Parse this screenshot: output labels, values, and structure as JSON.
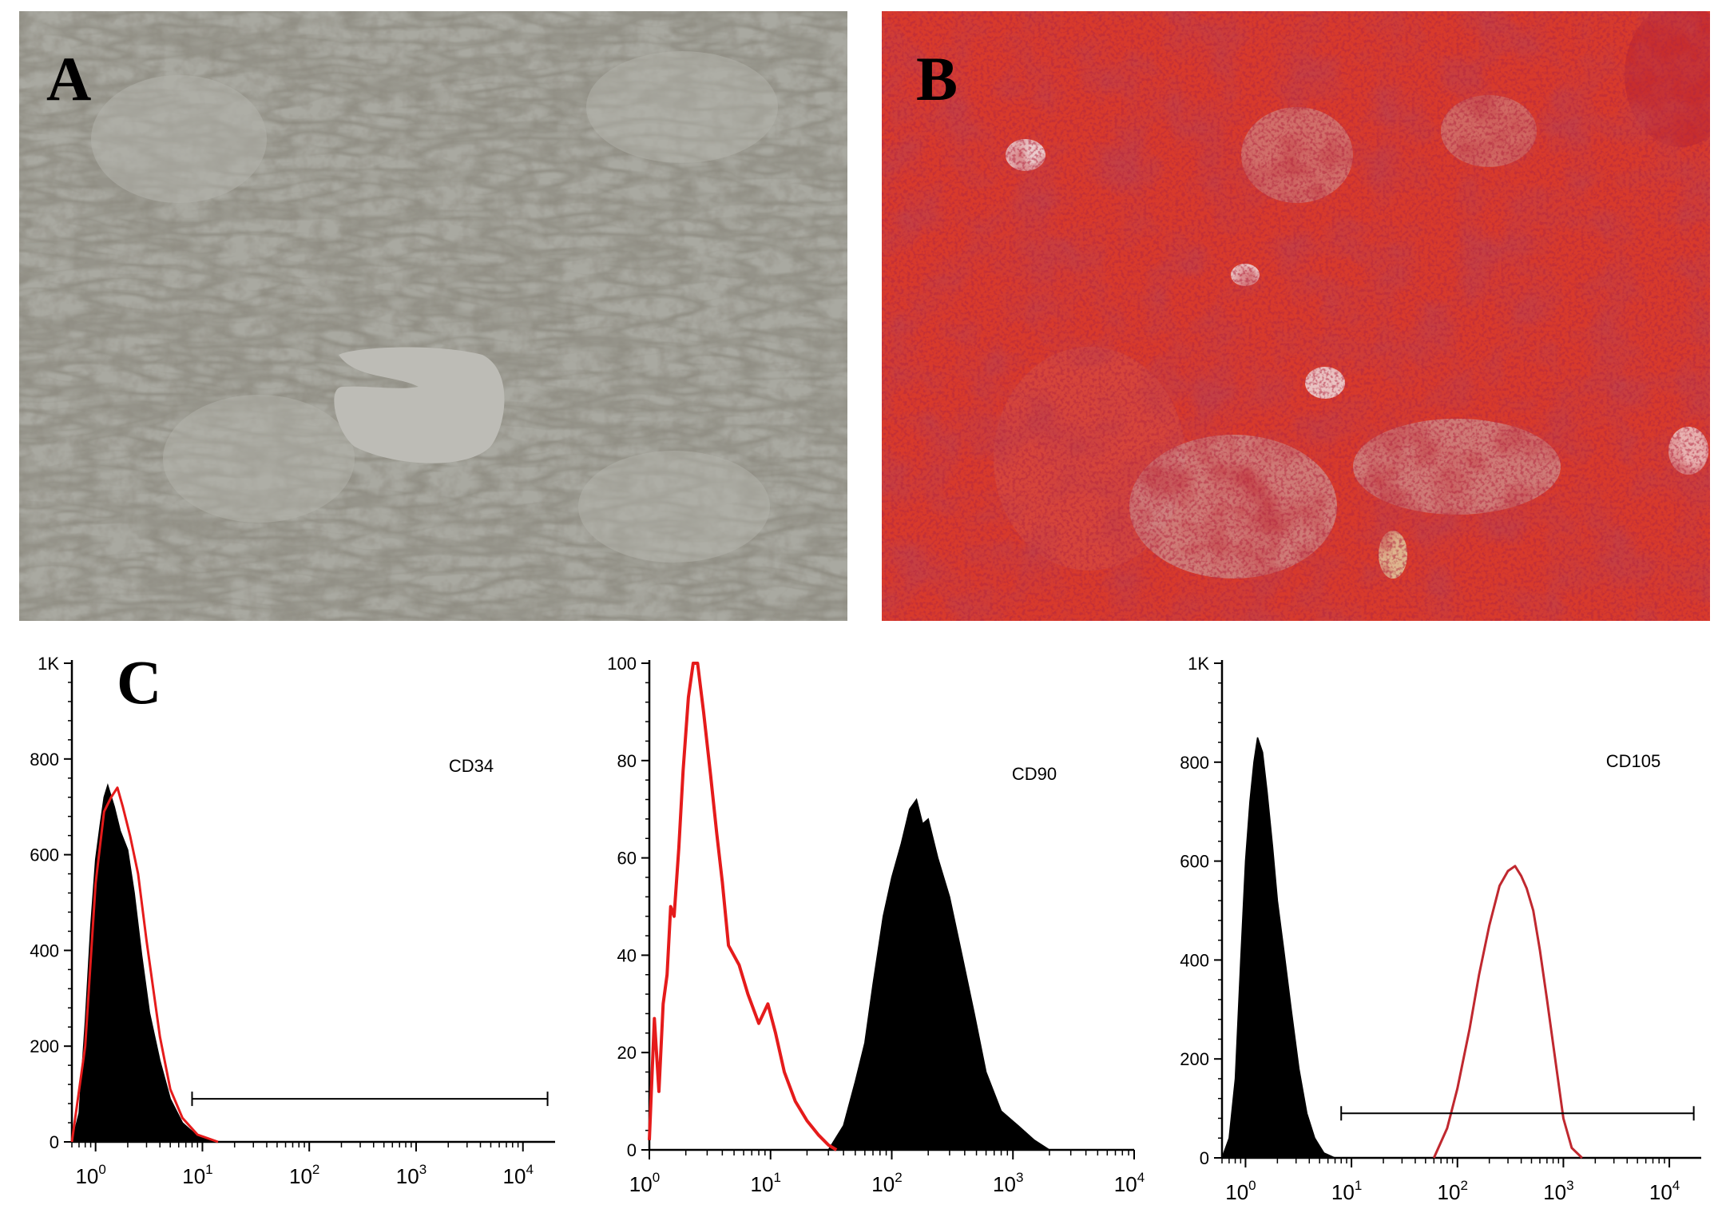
{
  "panels": {
    "A": {
      "letter": "A"
    },
    "B": {
      "letter": "B"
    },
    "C": {
      "letter": "C"
    }
  },
  "colors": {
    "phase_contrast_bg": "#a9a9a1",
    "stain_red": "#d83a2c",
    "stain_dark": "#8f1010",
    "stain_light": "#c9b1b6",
    "histogram_fill": "#000000",
    "overlay_red": "#e51b1b",
    "overlay_dark_red": "#c0282f"
  },
  "chart_data": [
    {
      "type": "area",
      "marker": "CD34",
      "x_scale": "log",
      "xlim": [
        0.6,
        20000
      ],
      "ylim": [
        0,
        1000
      ],
      "y_ticks": [
        "0",
        "200",
        "400",
        "600",
        "800",
        "1K"
      ],
      "x_ticks": [
        {
          "base": "10",
          "exp": "0"
        },
        {
          "base": "10",
          "exp": "1"
        },
        {
          "base": "10",
          "exp": "2"
        },
        {
          "base": "10",
          "exp": "3"
        },
        {
          "base": "10",
          "exp": "4"
        }
      ],
      "gate": [
        8,
        17000
      ],
      "series": [
        {
          "style": "filled-black",
          "x": [
            0.6,
            0.7,
            0.8,
            0.9,
            1.0,
            1.1,
            1.2,
            1.3,
            1.5,
            1.7,
            2.0,
            2.3,
            2.7,
            3.2,
            4.0,
            5.0,
            6.5,
            9.0,
            14
          ],
          "y": [
            0,
            60,
            250,
            450,
            590,
            660,
            720,
            745,
            700,
            650,
            610,
            520,
            390,
            270,
            170,
            90,
            40,
            12,
            0
          ]
        },
        {
          "style": "red-line",
          "x": [
            0.6,
            0.8,
            1.0,
            1.2,
            1.4,
            1.6,
            1.8,
            2.1,
            2.5,
            3.0,
            4.0,
            5.0,
            6.5,
            9.0,
            14
          ],
          "y": [
            0,
            200,
            540,
            690,
            720,
            740,
            700,
            640,
            560,
            420,
            220,
            110,
            50,
            15,
            0
          ]
        }
      ]
    },
    {
      "type": "area",
      "marker": "CD90",
      "x_scale": "log",
      "xlim": [
        1,
        10000
      ],
      "ylim": [
        0,
        100
      ],
      "y_ticks": [
        "0",
        "20",
        "40",
        "60",
        "80",
        "100"
      ],
      "x_ticks": [
        {
          "base": "10",
          "exp": "0"
        },
        {
          "base": "10",
          "exp": "1"
        },
        {
          "base": "10",
          "exp": "2"
        },
        {
          "base": "10",
          "exp": "3"
        },
        {
          "base": "10",
          "exp": "4"
        }
      ],
      "series": [
        {
          "style": "red-line",
          "x": [
            1.0,
            1.1,
            1.2,
            1.3,
            1.4,
            1.5,
            1.6,
            1.75,
            1.9,
            2.1,
            2.3,
            2.5,
            2.8,
            3.2,
            3.6,
            4.0,
            4.5,
            5.5,
            6.5,
            8.0,
            9.5,
            11,
            13,
            16,
            20,
            25,
            30,
            35
          ],
          "y": [
            2,
            27,
            12,
            30,
            36,
            50,
            48,
            62,
            78,
            93,
            100,
            100,
            90,
            77,
            65,
            55,
            42,
            38,
            32,
            26,
            30,
            24,
            16,
            10,
            6,
            3,
            1,
            0
          ]
        },
        {
          "style": "filled-black",
          "x": [
            30,
            40,
            50,
            60,
            70,
            85,
            100,
            120,
            140,
            160,
            180,
            200,
            240,
            300,
            380,
            480,
            600,
            800,
            1100,
            1500,
            2000
          ],
          "y": [
            0,
            5,
            14,
            22,
            34,
            48,
            56,
            63,
            70,
            72,
            67,
            68,
            60,
            52,
            40,
            28,
            16,
            8,
            5,
            2,
            0
          ]
        }
      ]
    },
    {
      "type": "area",
      "marker": "CD105",
      "x_scale": "log",
      "xlim": [
        0.6,
        20000
      ],
      "ylim": [
        0,
        1000
      ],
      "y_ticks": [
        "0",
        "200",
        "400",
        "600",
        "800",
        "1K"
      ],
      "x_ticks": [
        {
          "base": "10",
          "exp": "0"
        },
        {
          "base": "10",
          "exp": "1"
        },
        {
          "base": "10",
          "exp": "2"
        },
        {
          "base": "10",
          "exp": "3"
        },
        {
          "base": "10",
          "exp": "4"
        }
      ],
      "gate": [
        8,
        17000
      ],
      "series": [
        {
          "style": "filled-black",
          "x": [
            0.6,
            0.7,
            0.8,
            0.9,
            1.0,
            1.1,
            1.2,
            1.3,
            1.45,
            1.6,
            1.8,
            2.0,
            2.3,
            2.7,
            3.2,
            3.8,
            4.5,
            5.5,
            7.0
          ],
          "y": [
            0,
            40,
            160,
            400,
            600,
            720,
            800,
            850,
            820,
            740,
            630,
            520,
            420,
            300,
            180,
            90,
            40,
            10,
            0
          ]
        },
        {
          "style": "red-line",
          "x": [
            60,
            80,
            100,
            130,
            160,
            200,
            250,
            300,
            350,
            400,
            450,
            520,
            600,
            700,
            850,
            1000,
            1200,
            1500
          ],
          "y": [
            0,
            60,
            140,
            260,
            370,
            470,
            550,
            580,
            590,
            570,
            545,
            500,
            420,
            320,
            190,
            80,
            20,
            0
          ]
        }
      ]
    }
  ]
}
